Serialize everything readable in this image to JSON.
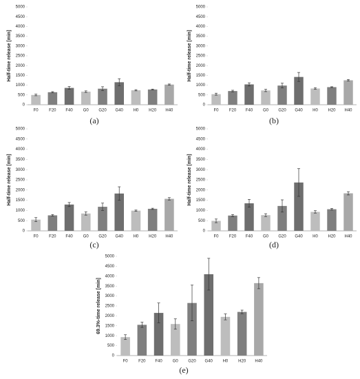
{
  "chart_data": [
    {
      "type": "bar",
      "caption": "(a)",
      "ylabel": "Half-time release [min]",
      "categories": [
        "F0",
        "F20",
        "F40",
        "G0",
        "G20",
        "G40",
        "H0",
        "H20",
        "H40"
      ],
      "values": [
        500,
        640,
        860,
        670,
        820,
        1150,
        740,
        780,
        1030
      ],
      "errors": [
        40,
        30,
        70,
        40,
        100,
        180,
        30,
        20,
        30
      ],
      "colors": [
        "#bdbdbd",
        "#7f7f7f",
        "#6e6e6e",
        "#bdbdbd",
        "#7f7f7f",
        "#6e6e6e",
        "#bdbdbd",
        "#7f7f7f",
        "#a8a8a8"
      ],
      "ylim": [
        0,
        5000
      ],
      "yticks": [
        0,
        500,
        1000,
        1500,
        2000,
        2500,
        3000,
        3500,
        4000,
        4500,
        5000
      ]
    },
    {
      "type": "bar",
      "caption": "(b)",
      "ylabel": "Half-time release [min]",
      "categories": [
        "F0",
        "F20",
        "F40",
        "G0",
        "G20",
        "G40",
        "H0",
        "H20",
        "H40"
      ],
      "values": [
        540,
        700,
        1040,
        730,
        980,
        1420,
        830,
        900,
        1250
      ],
      "errors": [
        50,
        40,
        80,
        60,
        120,
        230,
        40,
        20,
        40
      ],
      "colors": [
        "#bdbdbd",
        "#7f7f7f",
        "#6e6e6e",
        "#bdbdbd",
        "#7f7f7f",
        "#6e6e6e",
        "#bdbdbd",
        "#7f7f7f",
        "#a8a8a8"
      ],
      "ylim": [
        0,
        5000
      ],
      "yticks": [
        0,
        500,
        1000,
        1500,
        2000,
        2500,
        3000,
        3500,
        4000,
        4500,
        5000
      ]
    },
    {
      "type": "bar",
      "caption": "(c)",
      "ylabel": "Half-time release [min]",
      "categories": [
        "F0",
        "F20",
        "F40",
        "G0",
        "G20",
        "G40",
        "H0",
        "H20",
        "H40"
      ],
      "values": [
        550,
        760,
        1290,
        850,
        1180,
        1830,
        990,
        1080,
        1570
      ],
      "errors": [
        100,
        40,
        100,
        80,
        180,
        330,
        30,
        30,
        60
      ],
      "colors": [
        "#bdbdbd",
        "#7f7f7f",
        "#6e6e6e",
        "#bdbdbd",
        "#7f7f7f",
        "#6e6e6e",
        "#bdbdbd",
        "#7f7f7f",
        "#a8a8a8"
      ],
      "ylim": [
        0,
        5000
      ],
      "yticks": [
        0,
        500,
        1000,
        1500,
        2000,
        2500,
        3000,
        3500,
        4000,
        4500,
        5000
      ]
    },
    {
      "type": "bar",
      "caption": "(d)",
      "ylabel": "Half-time release [min]",
      "categories": [
        "F0",
        "F20",
        "F40",
        "G0",
        "G20",
        "G40",
        "H0",
        "H20",
        "H40"
      ],
      "values": [
        490,
        750,
        1350,
        770,
        1220,
        2370,
        930,
        1060,
        1840
      ],
      "errors": [
        90,
        50,
        190,
        70,
        300,
        680,
        60,
        40,
        80
      ],
      "colors": [
        "#bdbdbd",
        "#7f7f7f",
        "#6e6e6e",
        "#bdbdbd",
        "#7f7f7f",
        "#6e6e6e",
        "#bdbdbd",
        "#7f7f7f",
        "#a8a8a8"
      ],
      "ylim": [
        0,
        5000
      ],
      "yticks": [
        0,
        500,
        1000,
        1500,
        2000,
        2500,
        3000,
        3500,
        4000,
        4500,
        5000
      ]
    },
    {
      "type": "bar",
      "caption": "(e)",
      "ylabel": "69.3%-time release [min]",
      "categories": [
        "F0",
        "F20",
        "F40",
        "G0",
        "G20",
        "G40",
        "H0",
        "H20",
        "H40"
      ],
      "values": [
        930,
        1550,
        2150,
        1590,
        2650,
        4100,
        1950,
        2200,
        3650
      ],
      "errors": [
        120,
        130,
        500,
        260,
        900,
        800,
        150,
        90,
        280
      ],
      "colors": [
        "#bdbdbd",
        "#7f7f7f",
        "#6e6e6e",
        "#bdbdbd",
        "#7f7f7f",
        "#6e6e6e",
        "#bdbdbd",
        "#7f7f7f",
        "#a8a8a8"
      ],
      "ylim": [
        0,
        5000
      ],
      "yticks": [
        0,
        500,
        1000,
        1500,
        2000,
        2500,
        3000,
        3500,
        4000,
        4500,
        5000
      ]
    }
  ]
}
